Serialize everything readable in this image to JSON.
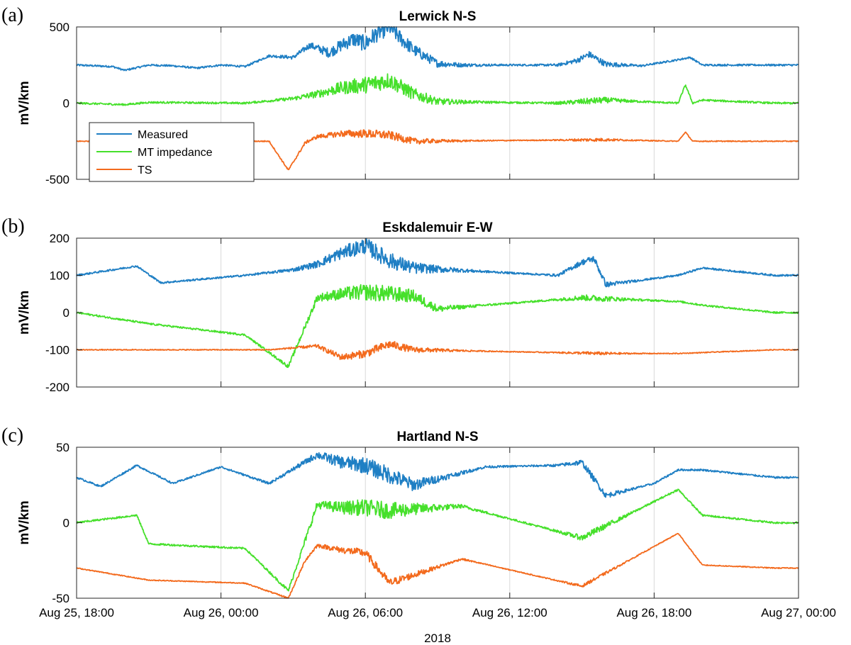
{
  "chart_data": [
    {
      "type": "line",
      "panel": "(a)",
      "title": "Lerwick N-S",
      "ylabel": "mV/km",
      "xlabel": "2018",
      "ylim": [
        -500,
        500
      ],
      "yticks": [
        -500,
        0,
        500
      ],
      "x_ticks": [
        "Aug 25, 18:00",
        "Aug 26, 00:00",
        "Aug 26, 06:00",
        "Aug 26, 12:00",
        "Aug 26, 18:00",
        "Aug 27, 00:00"
      ],
      "grid": "vertical",
      "legend": {
        "placement": "bottom-left"
      },
      "series": [
        {
          "name": "Measured",
          "color": "#1f7fc4",
          "baseline": 250,
          "points": [
            [
              0,
              250
            ],
            [
              1.5,
              240
            ],
            [
              2,
              215
            ],
            [
              3,
              250
            ],
            [
              4,
              245
            ],
            [
              5,
              230
            ],
            [
              6,
              250
            ],
            [
              7,
              240
            ],
            [
              8,
              310
            ],
            [
              9,
              300
            ],
            [
              9.7,
              380
            ],
            [
              10.5,
              330
            ],
            [
              11,
              380
            ],
            [
              11.5,
              420
            ],
            [
              12,
              390
            ],
            [
              12.5,
              460
            ],
            [
              13,
              500
            ],
            [
              13.5,
              420
            ],
            [
              14,
              350
            ],
            [
              15,
              260
            ],
            [
              16,
              250
            ],
            [
              20,
              250
            ],
            [
              20.8,
              280
            ],
            [
              21.3,
              320
            ],
            [
              22,
              255
            ],
            [
              23.5,
              245
            ],
            [
              25,
              285
            ],
            [
              25.5,
              300
            ],
            [
              26,
              250
            ],
            [
              29,
              250
            ]
          ]
        },
        {
          "name": "MT impedance",
          "color": "#46e02b",
          "baseline": 0,
          "points": [
            [
              0,
              0
            ],
            [
              2,
              -10
            ],
            [
              3,
              5
            ],
            [
              7,
              0
            ],
            [
              9,
              30
            ],
            [
              10,
              60
            ],
            [
              11,
              100
            ],
            [
              12,
              120
            ],
            [
              13,
              150
            ],
            [
              14,
              60
            ],
            [
              15,
              10
            ],
            [
              20,
              0
            ],
            [
              22,
              20
            ],
            [
              25,
              0
            ],
            [
              25.3,
              120
            ],
            [
              25.6,
              0
            ],
            [
              26,
              20
            ],
            [
              29,
              0
            ]
          ]
        },
        {
          "name": "TS",
          "color": "#f36a1d",
          "baseline": -250,
          "points": [
            [
              0,
              -250
            ],
            [
              8,
              -250
            ],
            [
              8.8,
              -440
            ],
            [
              9.5,
              -260
            ],
            [
              10,
              -220
            ],
            [
              11,
              -200
            ],
            [
              12,
              -200
            ],
            [
              13,
              -210
            ],
            [
              14,
              -250
            ],
            [
              22,
              -240
            ],
            [
              25,
              -250
            ],
            [
              25.3,
              -190
            ],
            [
              25.6,
              -250
            ],
            [
              29,
              -250
            ]
          ]
        }
      ]
    },
    {
      "type": "line",
      "panel": "(b)",
      "title": "Eskdalemuir E-W",
      "ylabel": "mV/km",
      "ylim": [
        -200,
        200
      ],
      "yticks": [
        -200,
        -100,
        0,
        100,
        200
      ],
      "grid": "vertical",
      "series": [
        {
          "name": "Measured",
          "color": "#1f7fc4",
          "baseline": 100,
          "points": [
            [
              0,
              100
            ],
            [
              2.5,
              125
            ],
            [
              3.5,
              80
            ],
            [
              7,
              100
            ],
            [
              9,
              115
            ],
            [
              10,
              130
            ],
            [
              11,
              160
            ],
            [
              12,
              180
            ],
            [
              13,
              140
            ],
            [
              14,
              120
            ],
            [
              20,
              100
            ],
            [
              21,
              135
            ],
            [
              21.5,
              145
            ],
            [
              22,
              75
            ],
            [
              25,
              100
            ],
            [
              26,
              120
            ],
            [
              29,
              100
            ]
          ]
        },
        {
          "name": "MT impedance",
          "color": "#46e02b",
          "baseline": 0,
          "points": [
            [
              0,
              0
            ],
            [
              3,
              -30
            ],
            [
              7,
              -60
            ],
            [
              8.8,
              -145
            ],
            [
              10,
              40
            ],
            [
              11,
              50
            ],
            [
              12,
              55
            ],
            [
              13,
              50
            ],
            [
              14,
              45
            ],
            [
              15,
              10
            ],
            [
              21,
              40
            ],
            [
              25,
              30
            ],
            [
              26,
              20
            ],
            [
              29,
              0
            ]
          ]
        },
        {
          "name": "TS",
          "color": "#f36a1d",
          "baseline": -100,
          "points": [
            [
              0,
              -100
            ],
            [
              8,
              -100
            ],
            [
              10,
              -90
            ],
            [
              11,
              -120
            ],
            [
              12,
              -110
            ],
            [
              13,
              -85
            ],
            [
              14,
              -100
            ],
            [
              22,
              -110
            ],
            [
              25,
              -110
            ],
            [
              29,
              -100
            ]
          ]
        }
      ]
    },
    {
      "type": "line",
      "panel": "(c)",
      "title": "Hartland N-S",
      "ylabel": "mV/km",
      "ylim": [
        -50,
        50
      ],
      "yticks": [
        -50,
        0,
        50
      ],
      "grid": "vertical",
      "series": [
        {
          "name": "Measured",
          "color": "#1f7fc4",
          "baseline": 30,
          "points": [
            [
              0,
              30
            ],
            [
              1,
              24
            ],
            [
              2.5,
              38
            ],
            [
              4,
              26
            ],
            [
              6,
              37
            ],
            [
              8,
              26
            ],
            [
              10,
              45
            ],
            [
              11,
              40
            ],
            [
              12,
              38
            ],
            [
              14,
              25
            ],
            [
              17,
              37
            ],
            [
              20,
              38
            ],
            [
              21,
              40
            ],
            [
              22,
              18
            ],
            [
              24,
              26
            ],
            [
              25,
              35
            ],
            [
              26,
              35
            ],
            [
              29,
              30
            ]
          ]
        },
        {
          "name": "MT impedance",
          "color": "#46e02b",
          "baseline": 0,
          "points": [
            [
              0,
              0
            ],
            [
              2.5,
              5
            ],
            [
              3,
              -14
            ],
            [
              7,
              -17
            ],
            [
              8.8,
              -45
            ],
            [
              10,
              12
            ],
            [
              11,
              10
            ],
            [
              12,
              10
            ],
            [
              13,
              8
            ],
            [
              16,
              11
            ],
            [
              21,
              -10
            ],
            [
              25,
              22
            ],
            [
              26,
              5
            ],
            [
              29,
              0
            ]
          ]
        },
        {
          "name": "TS",
          "color": "#f36a1d",
          "baseline": -30,
          "points": [
            [
              0,
              -30
            ],
            [
              3,
              -38
            ],
            [
              7,
              -40
            ],
            [
              8.8,
              -50
            ],
            [
              9.5,
              -25
            ],
            [
              10,
              -15
            ],
            [
              11,
              -18
            ],
            [
              12,
              -20
            ],
            [
              13,
              -40
            ],
            [
              16,
              -24
            ],
            [
              21,
              -42
            ],
            [
              25,
              -7
            ],
            [
              26,
              -28
            ],
            [
              29,
              -30
            ]
          ]
        }
      ]
    }
  ]
}
